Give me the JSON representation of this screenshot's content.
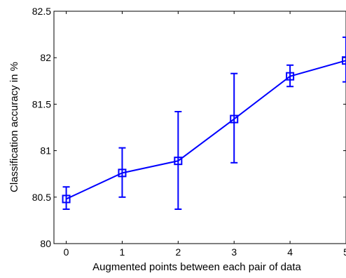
{
  "chart_data": {
    "type": "line",
    "title": "",
    "xlabel": "Augmented points between each pair of data",
    "ylabel": "Classification accuracy in %",
    "x": [
      0,
      1,
      2,
      3,
      4,
      5
    ],
    "xlim": [
      -0.22,
      5
    ],
    "ylim": [
      80,
      82.5
    ],
    "xticks": [
      "0",
      "1",
      "2",
      "3",
      "4",
      "5"
    ],
    "yticks": [
      "80",
      "80.5",
      "81",
      "81.5",
      "82",
      "82.5"
    ],
    "grid": false,
    "series": [
      {
        "values": [
          80.48,
          80.76,
          80.89,
          81.34,
          81.8,
          81.97
        ],
        "err_lower": [
          80.37,
          80.5,
          80.37,
          80.87,
          81.69,
          81.74
        ],
        "err_upper": [
          80.61,
          81.03,
          81.42,
          81.83,
          81.92,
          82.22
        ],
        "marker": "square",
        "color": "#0000ff"
      }
    ]
  }
}
